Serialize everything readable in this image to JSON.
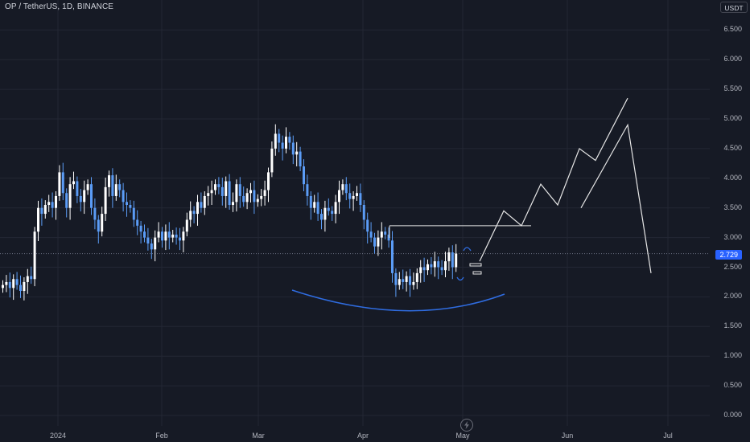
{
  "header": {
    "symbol_title": "OP / TetherUS, 1D, BINANCE",
    "unit": "USDT"
  },
  "price_axis": {
    "ticks": [
      "6.500",
      "6.000",
      "5.500",
      "5.000",
      "4.500",
      "4.000",
      "3.500",
      "3.000",
      "2.500",
      "2.000",
      "1.500",
      "1.000",
      "0.500",
      "0.000"
    ],
    "current_price": "2.729"
  },
  "time_axis": {
    "ticks": [
      "2024",
      "Feb",
      "Mar",
      "Apr",
      "May",
      "Jun",
      "Jul"
    ]
  },
  "colors": {
    "background": "#161a25",
    "up_candle": "#ffffff",
    "down_candle": "#5b9cf6",
    "drawing": "#e6e6e6",
    "curve": "#2f6ce0",
    "price_label": "#2962ff"
  },
  "icons": {
    "bolt": "lightning-icon"
  },
  "chart_data": {
    "type": "candlestick",
    "ylim": [
      0,
      6.8
    ],
    "x_labels": [
      "2024",
      "Feb",
      "Mar",
      "Apr",
      "May",
      "Jun",
      "Jul"
    ],
    "close_prices": [
      2.2,
      2.25,
      2.15,
      2.3,
      2.2,
      2.1,
      2.25,
      2.35,
      2.3,
      3.1,
      3.5,
      3.4,
      3.55,
      3.6,
      3.5,
      3.7,
      4.1,
      3.75,
      3.5,
      3.9,
      3.95,
      3.7,
      3.6,
      3.8,
      3.9,
      3.5,
      3.3,
      3.1,
      3.4,
      3.85,
      4.05,
      3.7,
      3.9,
      3.8,
      3.6,
      3.55,
      3.5,
      3.3,
      3.2,
      3.1,
      3.0,
      2.9,
      2.8,
      3.0,
      3.1,
      2.95,
      3.1,
      3.0,
      3.05,
      3.0,
      2.95,
      3.1,
      3.3,
      3.45,
      3.4,
      3.6,
      3.5,
      3.7,
      3.75,
      3.8,
      3.9,
      3.85,
      3.7,
      3.95,
      3.55,
      3.6,
      3.9,
      3.7,
      3.6,
      3.75,
      3.8,
      3.6,
      3.65,
      3.7,
      3.8,
      4.1,
      4.5,
      4.75,
      4.6,
      4.5,
      4.7,
      4.6,
      4.4,
      4.45,
      4.2,
      3.9,
      3.7,
      3.5,
      3.6,
      3.4,
      3.3,
      3.5,
      3.45,
      3.4,
      3.6,
      3.8,
      3.9,
      3.75,
      3.65,
      3.7,
      3.75,
      3.55,
      3.3,
      3.1,
      3.0,
      2.85,
      3.0,
      3.1,
      3.05,
      2.95,
      2.4,
      2.2,
      2.3,
      2.25,
      2.35,
      2.2,
      2.25,
      2.4,
      2.5,
      2.45,
      2.55,
      2.5,
      2.6,
      2.5,
      2.45,
      2.6,
      2.75,
      2.5,
      2.729
    ],
    "drawings": {
      "projection_path": [
        [
          2.6,
          0
        ],
        [
          3.45,
          1
        ],
        [
          3.2,
          2
        ],
        [
          3.9,
          3
        ],
        [
          3.55,
          4
        ],
        [
          4.5,
          5
        ],
        [
          4.3,
          6
        ],
        [
          5.35,
          7
        ]
      ],
      "second_path": [
        [
          3.5,
          0
        ],
        [
          4.9,
          1
        ],
        [
          2.4,
          2
        ]
      ],
      "horizontal_level": 3.2,
      "support_curve_min": 1.75
    }
  }
}
